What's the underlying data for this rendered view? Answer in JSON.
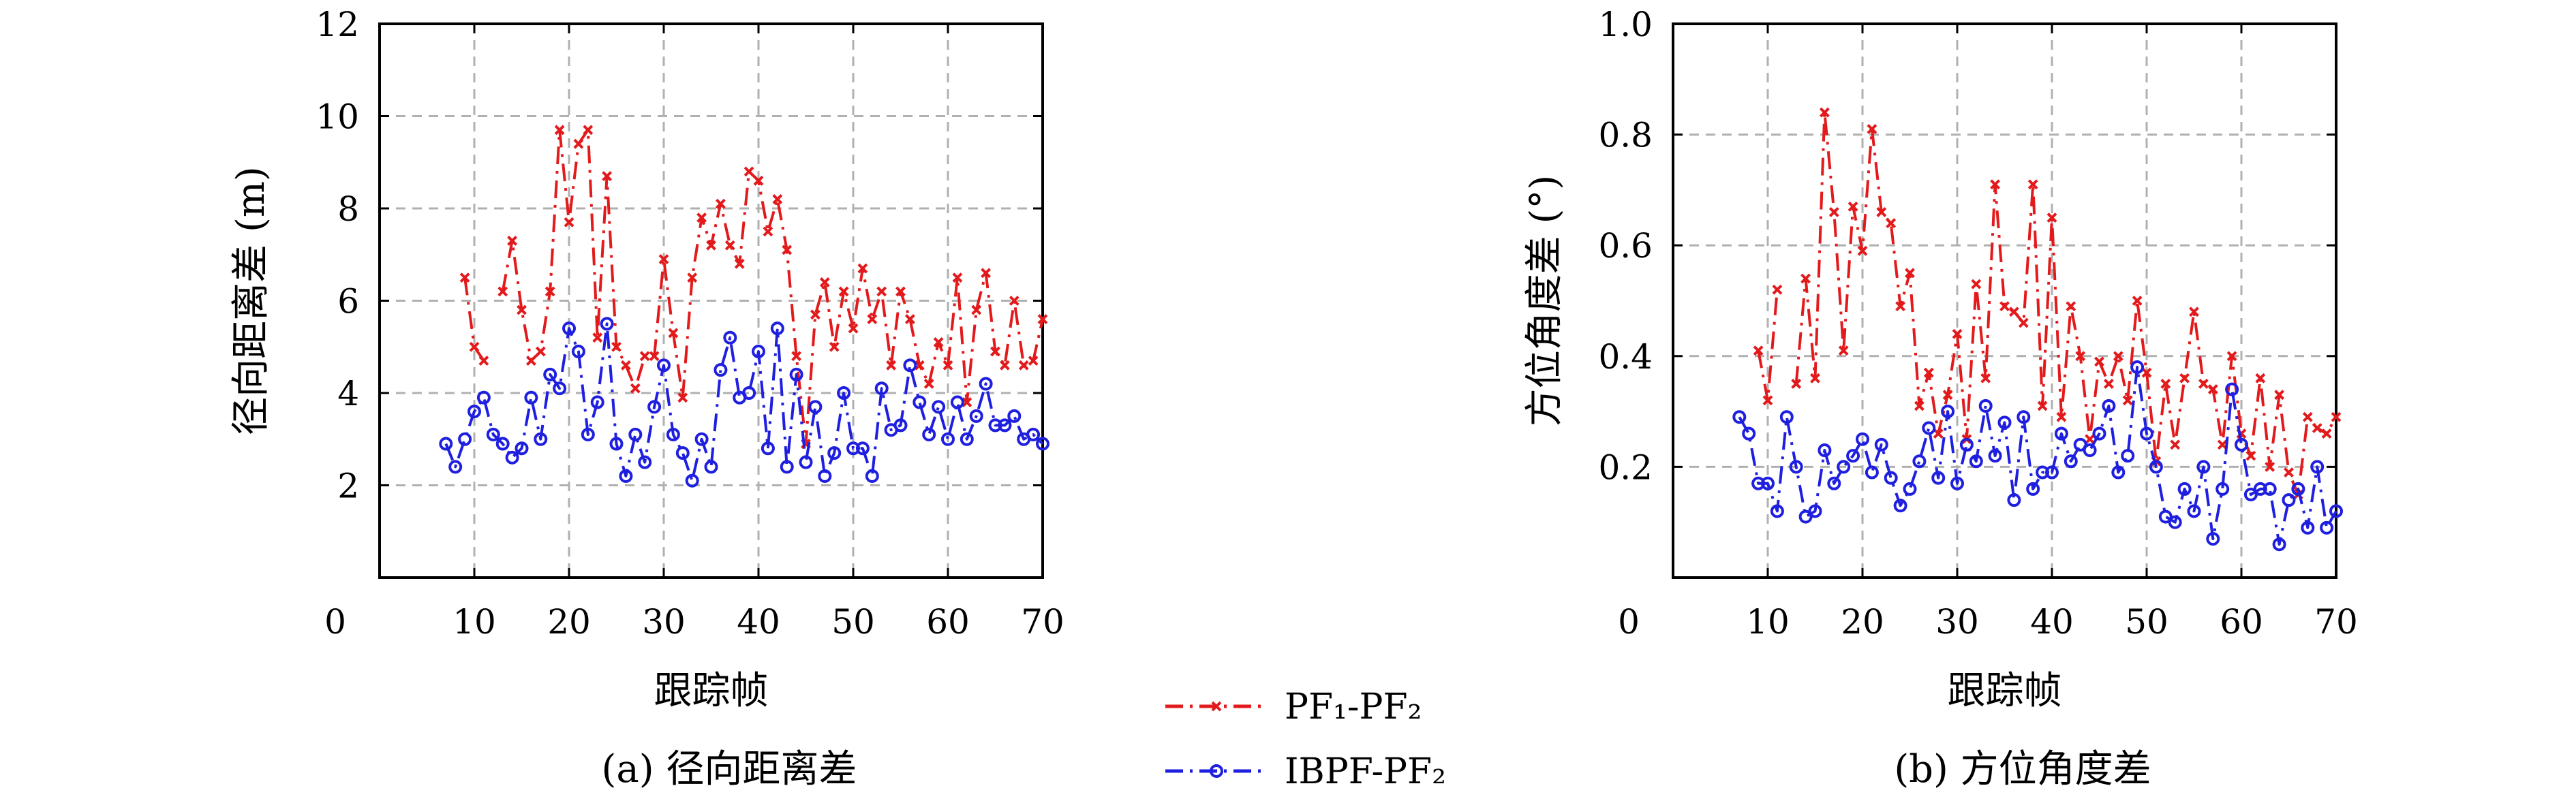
{
  "chart_data": [
    {
      "type": "line",
      "caption": "(a) 径向距离差",
      "xlabel": "跟踪帧",
      "ylabel": "径向距离差 (m)",
      "xlim": [
        0,
        70
      ],
      "ylim": [
        0,
        12
      ],
      "xticks": [
        0,
        10,
        20,
        30,
        40,
        50,
        60,
        70
      ],
      "yticks": [
        2,
        4,
        6,
        8,
        10,
        12
      ],
      "grid": true,
      "series": [
        {
          "name": "PF₁-PF₂",
          "color": "#e31a1c",
          "marker": "x",
          "x": [
            9,
            10,
            11,
            12,
            13,
            14,
            15,
            16,
            17,
            18,
            19,
            20,
            21,
            22,
            23,
            24,
            25,
            26,
            27,
            28,
            29,
            30,
            31,
            32,
            33,
            34,
            35,
            36,
            37,
            38,
            39,
            40,
            41,
            42,
            43,
            44,
            45,
            46,
            47,
            48,
            49,
            50,
            51,
            52,
            53,
            54,
            55,
            56,
            57,
            58,
            59,
            60,
            61,
            62,
            63,
            64,
            65,
            66,
            67,
            68,
            69,
            70
          ],
          "y": [
            6.5,
            5.0,
            4.7,
            null,
            6.2,
            7.3,
            5.8,
            4.7,
            4.9,
            6.2,
            9.7,
            7.7,
            9.4,
            9.7,
            5.2,
            8.7,
            5.0,
            4.6,
            4.1,
            4.8,
            4.8,
            6.9,
            5.3,
            3.9,
            6.5,
            7.8,
            7.2,
            8.1,
            7.2,
            6.8,
            8.8,
            8.6,
            7.5,
            8.2,
            7.1,
            4.8,
            2.9,
            5.7,
            6.4,
            5.0,
            6.2,
            5.4,
            6.7,
            5.6,
            6.2,
            4.6,
            6.2,
            5.6,
            4.6,
            4.2,
            5.1,
            4.6,
            6.5,
            3.8,
            5.8,
            6.6,
            4.9,
            4.6,
            6.0,
            4.6,
            4.7,
            5.6
          ]
        },
        {
          "name": "IBPF-PF₂",
          "color": "#1f1fe0",
          "marker": "o",
          "x": [
            7,
            8,
            9,
            10,
            11,
            12,
            13,
            14,
            15,
            16,
            17,
            18,
            19,
            20,
            21,
            22,
            23,
            24,
            25,
            26,
            27,
            28,
            29,
            30,
            31,
            32,
            33,
            34,
            35,
            36,
            37,
            38,
            39,
            40,
            41,
            42,
            43,
            44,
            45,
            46,
            47,
            48,
            49,
            50,
            51,
            52,
            53,
            54,
            55,
            56,
            57,
            58,
            59,
            60,
            61,
            62,
            63,
            64,
            65,
            66,
            67,
            68,
            69,
            70
          ],
          "y": [
            2.9,
            2.4,
            3.0,
            3.6,
            3.9,
            3.1,
            2.9,
            2.6,
            2.8,
            3.9,
            3.0,
            4.4,
            4.1,
            5.4,
            4.9,
            3.1,
            3.8,
            5.5,
            2.9,
            2.2,
            3.1,
            2.5,
            3.7,
            4.6,
            3.1,
            2.7,
            2.1,
            3.0,
            2.4,
            4.5,
            5.2,
            3.9,
            4.0,
            4.9,
            2.8,
            5.4,
            2.4,
            4.4,
            2.5,
            3.7,
            2.2,
            2.7,
            4.0,
            2.8,
            2.8,
            2.2,
            4.1,
            3.2,
            3.3,
            4.6,
            3.8,
            3.1,
            3.7,
            3.0,
            3.8,
            3.0,
            3.5,
            4.2,
            3.3,
            3.3,
            3.5,
            3.0,
            3.1,
            2.9
          ]
        }
      ]
    },
    {
      "type": "line",
      "caption": "(b) 方位角度差",
      "xlabel": "跟踪帧",
      "ylabel": "方位角度差 (°)",
      "xlim": [
        0,
        70
      ],
      "ylim": [
        0,
        1.0
      ],
      "xticks": [
        0,
        10,
        20,
        30,
        40,
        50,
        60,
        70
      ],
      "yticks": [
        0.2,
        0.4,
        0.6,
        0.8,
        1.0
      ],
      "ytick_labels": [
        "0.2",
        "0.4",
        "0.6",
        "0.8",
        "1.0"
      ],
      "grid": true,
      "series": [
        {
          "name": "PF₁-PF₂",
          "color": "#e31a1c",
          "marker": "x",
          "x": [
            9,
            10,
            11,
            12,
            13,
            14,
            15,
            16,
            17,
            18,
            19,
            20,
            21,
            22,
            23,
            24,
            25,
            26,
            27,
            28,
            29,
            30,
            31,
            32,
            33,
            34,
            35,
            36,
            37,
            38,
            39,
            40,
            41,
            42,
            43,
            44,
            45,
            46,
            47,
            48,
            49,
            50,
            51,
            52,
            53,
            54,
            55,
            56,
            57,
            58,
            59,
            60,
            61,
            62,
            63,
            64,
            65,
            66,
            67,
            68,
            69,
            70
          ],
          "y": [
            0.41,
            0.32,
            0.52,
            null,
            0.35,
            0.54,
            0.36,
            0.84,
            0.66,
            0.41,
            0.67,
            0.59,
            0.81,
            0.66,
            0.64,
            0.49,
            0.55,
            0.31,
            0.37,
            0.26,
            0.33,
            0.44,
            0.25,
            0.53,
            0.36,
            0.71,
            0.49,
            0.48,
            0.46,
            0.71,
            0.31,
            0.65,
            0.29,
            0.49,
            0.4,
            0.25,
            0.39,
            0.35,
            0.4,
            0.32,
            0.5,
            0.37,
            0.21,
            0.35,
            0.24,
            0.36,
            0.48,
            0.35,
            0.34,
            0.24,
            0.4,
            0.26,
            0.22,
            0.36,
            0.2,
            0.33,
            0.19,
            0.15,
            0.29,
            0.27,
            0.26,
            0.29
          ]
        },
        {
          "name": "IBPF-PF₂",
          "color": "#1f1fe0",
          "marker": "o",
          "x": [
            7,
            8,
            9,
            10,
            11,
            12,
            13,
            14,
            15,
            16,
            17,
            18,
            19,
            20,
            21,
            22,
            23,
            24,
            25,
            26,
            27,
            28,
            29,
            30,
            31,
            32,
            33,
            34,
            35,
            36,
            37,
            38,
            39,
            40,
            41,
            42,
            43,
            44,
            45,
            46,
            47,
            48,
            49,
            50,
            51,
            52,
            53,
            54,
            55,
            56,
            57,
            58,
            59,
            60,
            61,
            62,
            63,
            64,
            65,
            66,
            67,
            68,
            69,
            70
          ],
          "y": [
            0.29,
            0.26,
            0.17,
            0.17,
            0.12,
            0.29,
            0.2,
            0.11,
            0.12,
            0.23,
            0.17,
            0.2,
            0.22,
            0.25,
            0.19,
            0.24,
            0.18,
            0.13,
            0.16,
            0.21,
            0.27,
            0.18,
            0.3,
            0.17,
            0.24,
            0.21,
            0.31,
            0.22,
            0.28,
            0.14,
            0.29,
            0.16,
            0.19,
            0.19,
            0.26,
            0.21,
            0.24,
            0.23,
            0.26,
            0.31,
            0.19,
            0.22,
            0.38,
            0.26,
            0.2,
            0.11,
            0.1,
            0.16,
            0.12,
            0.2,
            0.07,
            0.16,
            0.34,
            0.24,
            0.15,
            0.16,
            0.16,
            0.06,
            0.14,
            0.16,
            0.09,
            0.2,
            0.09,
            0.12
          ]
        }
      ]
    }
  ],
  "legend": {
    "placement": "bottom-center",
    "items": [
      {
        "label": "PF₁-PF₂",
        "color": "#e31a1c",
        "marker": "x"
      },
      {
        "label": "IBPF-PF₂",
        "color": "#1f1fe0",
        "marker": "o"
      }
    ]
  }
}
